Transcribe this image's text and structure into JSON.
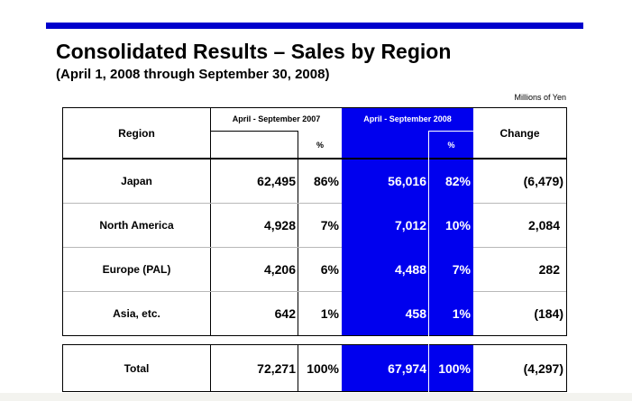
{
  "header": {
    "title": "Consolidated Results – Sales by Region",
    "subtitle": "(April 1, 2008 through September 30, 2008)",
    "units": "Millions of Yen"
  },
  "table": {
    "columns": {
      "region": "Region",
      "period_2007": "April - September 2007",
      "period_2008": "April - September 2008",
      "pct": "%",
      "change": "Change"
    },
    "rows": [
      {
        "region": "Japan",
        "v2007": "62,495",
        "p2007": "86%",
        "v2008": "56,016",
        "p2008": "82%",
        "change": "(6,479)"
      },
      {
        "region": "North America",
        "v2007": "4,928",
        "p2007": "7%",
        "v2008": "7,012",
        "p2008": "10%",
        "change": "2,084"
      },
      {
        "region": "Europe (PAL)",
        "v2007": "4,206",
        "p2007": "6%",
        "v2008": "4,488",
        "p2008": "7%",
        "change": "282"
      },
      {
        "region": "Asia, etc.",
        "v2007": "642",
        "p2007": "1%",
        "v2008": "458",
        "p2008": "1%",
        "change": "(184)"
      }
    ],
    "total": {
      "region": "Total",
      "v2007": "72,271",
      "p2007": "100%",
      "v2008": "67,974",
      "p2008": "100%",
      "change": "(4,297)"
    }
  },
  "colors": {
    "accent": "#0000cc",
    "highlight": "#0000ee",
    "background": "#ffffff"
  }
}
